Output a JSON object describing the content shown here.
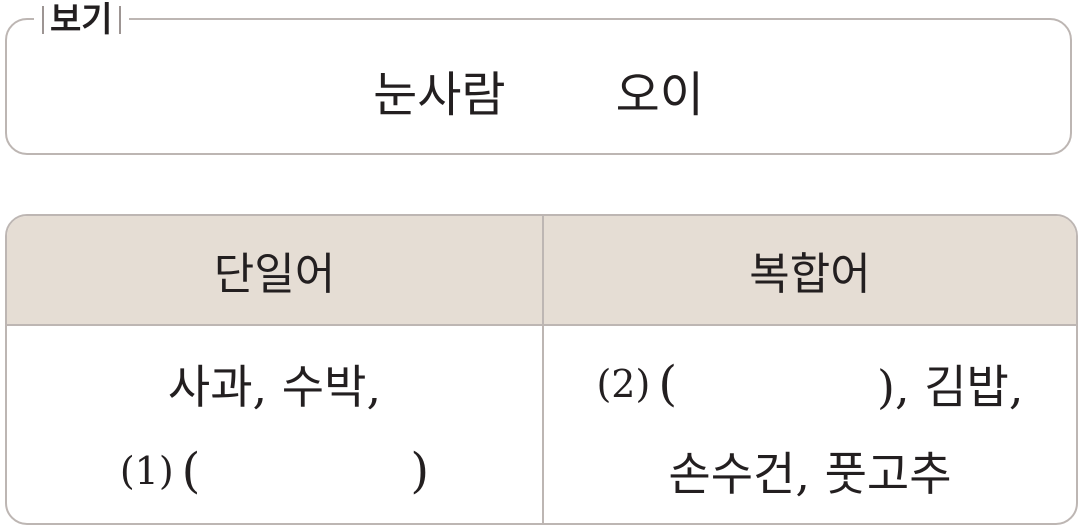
{
  "bogi": {
    "label": "보기",
    "words": [
      "눈사람",
      "오이"
    ]
  },
  "table": {
    "headers": [
      "단일어",
      "복합어"
    ],
    "left": {
      "line1": "사과, 수박,",
      "blank_number": "(1)",
      "open_paren": "(",
      "close_paren": ")"
    },
    "right": {
      "blank_number": "(2)",
      "open_paren": "(",
      "close_paren_rest": "), 김밥,",
      "line2": "손수건, 풋고추"
    }
  }
}
